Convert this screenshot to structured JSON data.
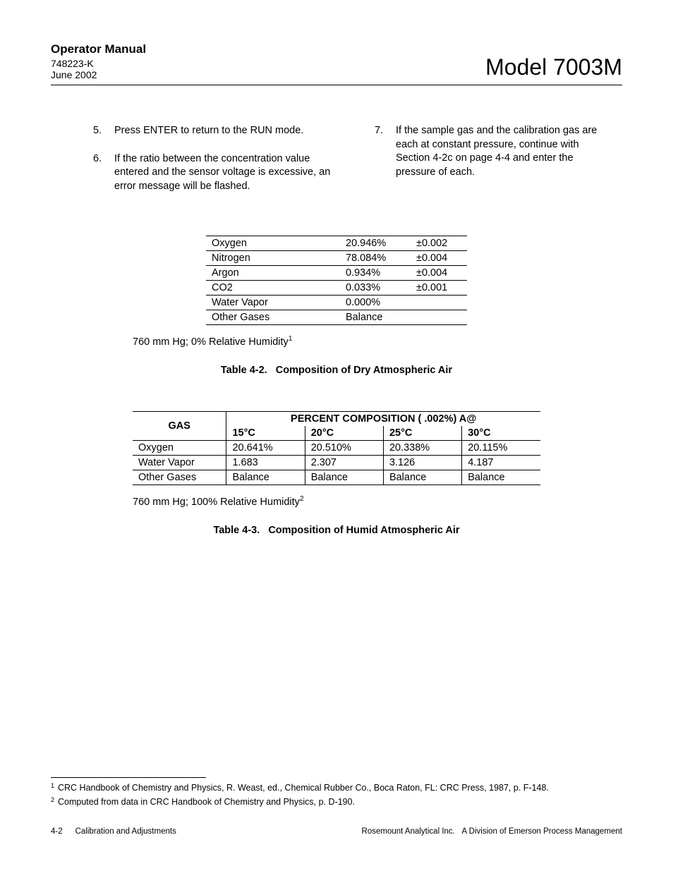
{
  "header": {
    "manual_title": "Operator Manual",
    "doc_number": "748223-K",
    "doc_date": "June 2002",
    "model": "Model 7003M"
  },
  "instructions": {
    "left": [
      {
        "num": "5.",
        "text": "Press ENTER to return to the RUN mode."
      },
      {
        "num": "6.",
        "text": "If the ratio between the concentration value entered and the sensor voltage is excessive, an error message will be flashed."
      }
    ],
    "right": [
      {
        "num": "7.",
        "text": "If the sample gas and the calibration gas are each at constant pressure, continue with Section 4-2c on page 4-4 and enter the pressure of each."
      }
    ]
  },
  "table1": {
    "rows": [
      {
        "gas": "Oxygen",
        "pct": "20.946%",
        "tol": "±0.002"
      },
      {
        "gas": "Nitrogen",
        "pct": "78.084%",
        "tol": "±0.004"
      },
      {
        "gas": "Argon",
        "pct": "0.934%",
        "tol": "±0.004"
      },
      {
        "gas": "CO2",
        "pct": "0.033%",
        "tol": "±0.001"
      },
      {
        "gas": "Water Vapor",
        "pct": "0.000%",
        "tol": ""
      },
      {
        "gas": "Other Gases",
        "pct": "Balance",
        "tol": ""
      }
    ],
    "note_pre": "760 mm Hg; 0% Relative Humidity",
    "note_sup": "1",
    "caption": "Table 4-2.   Composition of Dry Atmospheric Air"
  },
  "table2": {
    "header_gas": "GAS",
    "header_span": "PERCENT COMPOSITION ( .002%) A@",
    "temps": {
      "c15": "15°C",
      "c20": "20°C",
      "c25": "25°C",
      "c30": "30°C"
    },
    "rows": [
      {
        "gas": "Oxygen",
        "c15": "20.641%",
        "c20": "20.510%",
        "c25": "20.338%",
        "c30": "20.115%"
      },
      {
        "gas": "Water Vapor",
        "c15": "1.683",
        "c20": "2.307",
        "c25": "3.126",
        "c30": "4.187"
      },
      {
        "gas": "Other Gases",
        "c15": "Balance",
        "c20": "Balance",
        "c25": "Balance",
        "c30": "Balance"
      }
    ],
    "note_pre": "760 mm Hg; 100% Relative Humidity",
    "note_sup": "2",
    "caption": "Table 4-3.   Composition of Humid Atmospheric Air"
  },
  "footnotes": {
    "f1_num": "1",
    "f1_text": "CRC Handbook of Chemistry and Physics, R. Weast, ed., Chemical Rubber Co., Boca Raton, FL:  CRC Press, 1987, p. F-148.",
    "f2_num": "2",
    "f2_text": "Computed from data in CRC Handbook of Chemistry and Physics, p. D-190."
  },
  "footer": {
    "page": "4-2",
    "section": "Calibration and Adjustments",
    "company": "Rosemount Analytical Inc.   A Division of Emerson Process Management"
  }
}
